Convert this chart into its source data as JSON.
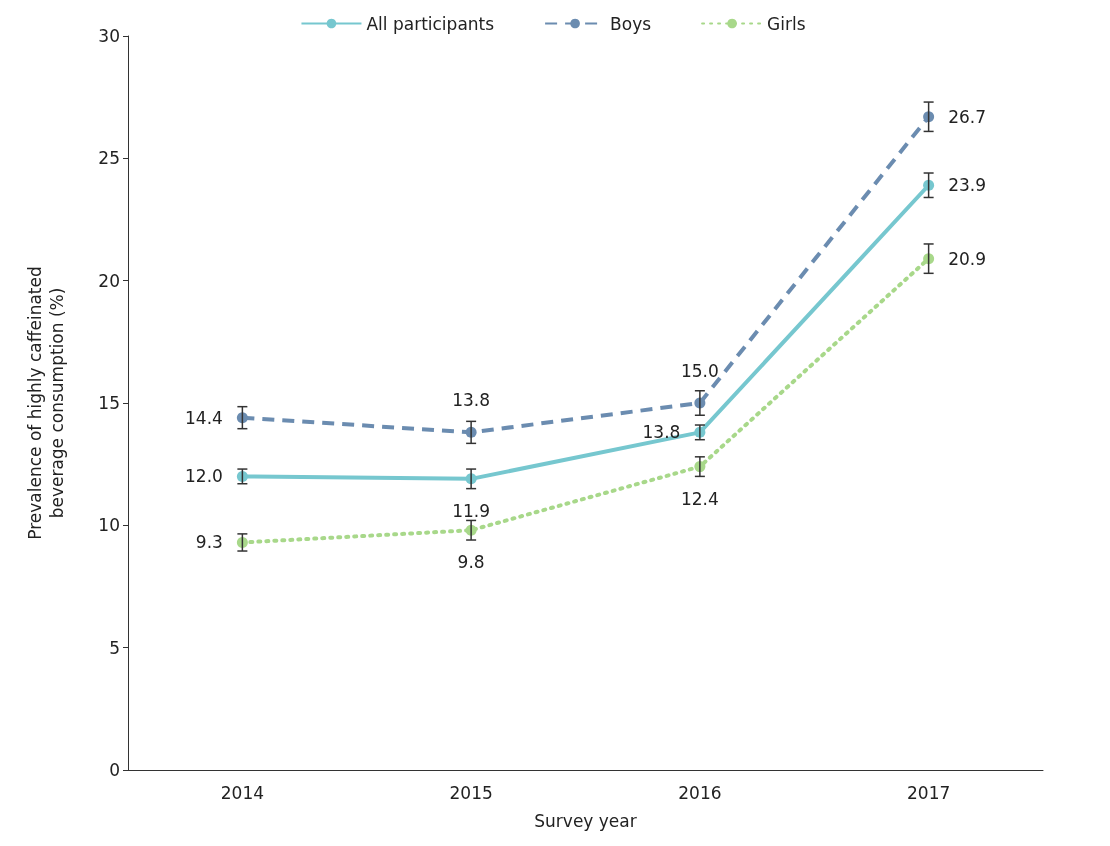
{
  "chart_data": {
    "type": "line",
    "xlabel": "Survey year",
    "ylabel": "Prevalence of highly caffeinated\nbeverage consumption (%)",
    "categories": [
      "2014",
      "2015",
      "2016",
      "2017"
    ],
    "series": [
      {
        "name": "All participants",
        "color": "#76c7cf",
        "values": [
          12.0,
          11.9,
          13.8,
          23.9
        ],
        "value_labels": [
          "12.0",
          "11.9",
          "13.8",
          "23.9"
        ],
        "errors": [
          0.3,
          0.4,
          0.3,
          0.5
        ],
        "line_style": "solid"
      },
      {
        "name": "Boys",
        "color": "#6b8cb0",
        "values": [
          14.4,
          13.8,
          15.0,
          26.7
        ],
        "value_labels": [
          "14.4",
          "13.8",
          "15.0",
          "26.7"
        ],
        "errors": [
          0.45,
          0.45,
          0.5,
          0.6
        ],
        "line_style": "dashed"
      },
      {
        "name": "Girls",
        "color": "#a8d88a",
        "values": [
          9.3,
          9.8,
          12.4,
          20.9
        ],
        "value_labels": [
          "9.3",
          "9.8",
          "12.4",
          "20.9"
        ],
        "errors": [
          0.35,
          0.4,
          0.4,
          0.6
        ],
        "line_style": "dotted"
      }
    ],
    "ylim": [
      0,
      30
    ],
    "yticks": [
      0,
      5,
      10,
      15,
      20,
      25,
      30
    ],
    "grid": false,
    "legend": "top",
    "marker": "circle"
  }
}
